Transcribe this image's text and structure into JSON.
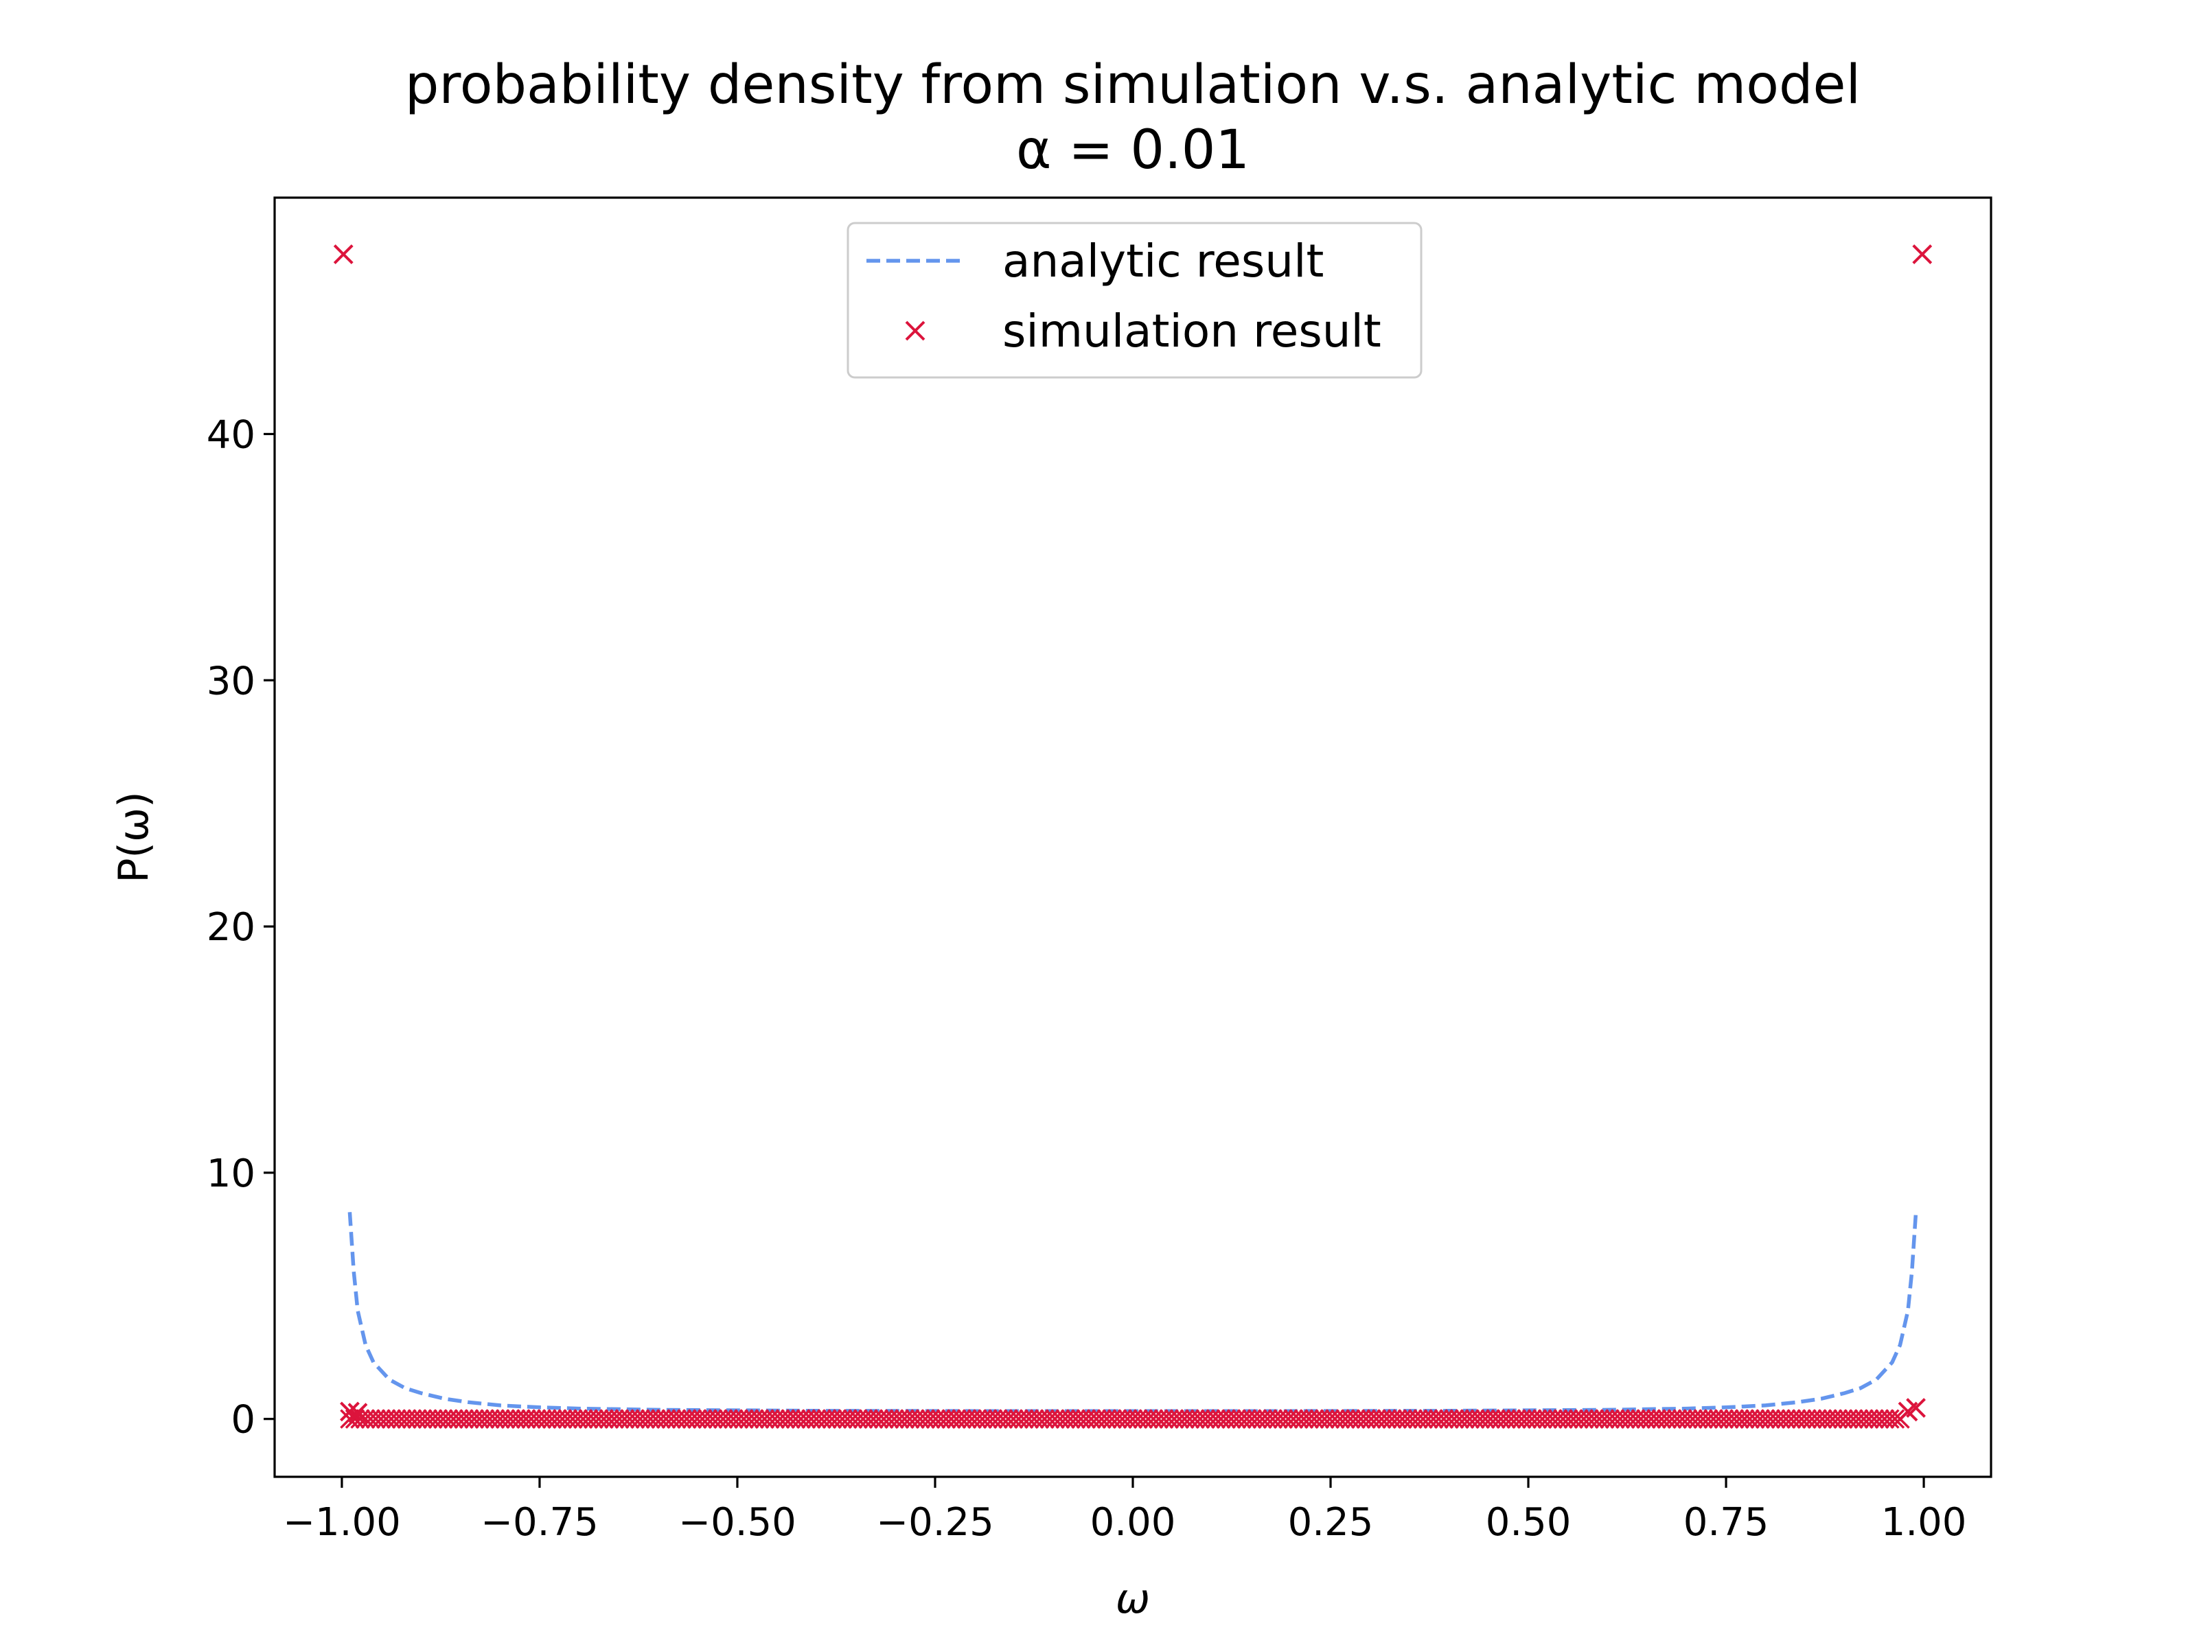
{
  "chart_data": {
    "type": "line+scatter",
    "title_line1": "probability density from simulation v.s. analytic model",
    "title_line2": "α = 0.01",
    "xlabel": "ω",
    "ylabel": "P(ω)",
    "xlim": [
      -1.085,
      1.085
    ],
    "ylim": [
      -2.35,
      49.6
    ],
    "xticks": [
      -1.0,
      -0.75,
      -0.5,
      -0.25,
      0.0,
      0.25,
      0.5,
      0.75,
      1.0
    ],
    "xtick_labels": [
      "−1.00",
      "−0.75",
      "−0.50",
      "−0.25",
      "0.00",
      "0.25",
      "0.50",
      "0.75",
      "1.00"
    ],
    "yticks": [
      0,
      10,
      20,
      30,
      40
    ],
    "ytick_labels": [
      "0",
      "10",
      "20",
      "30",
      "40"
    ],
    "grid": false,
    "legend_position": "upper center",
    "series": [
      {
        "name": "analytic result",
        "kind": "line",
        "linestyle": "dashed",
        "color": "#6495ED",
        "x": [
          -0.99,
          -0.985,
          -0.98,
          -0.97,
          -0.96,
          -0.94,
          -0.92,
          -0.9,
          -0.87,
          -0.84,
          -0.8,
          -0.75,
          -0.7,
          -0.6,
          -0.5,
          -0.4,
          -0.3,
          -0.2,
          -0.1,
          0.0,
          0.1,
          0.2,
          0.3,
          0.4,
          0.5,
          0.6,
          0.7,
          0.75,
          0.8,
          0.84,
          0.87,
          0.9,
          0.92,
          0.94,
          0.96,
          0.97,
          0.98,
          0.985,
          0.99
        ],
        "y": [
          8.4,
          6.0,
          4.4,
          3.0,
          2.3,
          1.6,
          1.25,
          1.05,
          0.82,
          0.68,
          0.55,
          0.47,
          0.42,
          0.37,
          0.35,
          0.33,
          0.325,
          0.32,
          0.318,
          0.318,
          0.318,
          0.32,
          0.325,
          0.33,
          0.35,
          0.37,
          0.42,
          0.47,
          0.55,
          0.68,
          0.82,
          1.05,
          1.25,
          1.6,
          2.3,
          3.0,
          4.4,
          6.0,
          8.4
        ]
      },
      {
        "name": "simulation result",
        "kind": "scatter",
        "marker": "x",
        "color": "#DC143C",
        "outliers": [
          {
            "x": -0.998,
            "y": 47.3
          },
          {
            "x": 0.998,
            "y": 47.3
          }
        ],
        "near_edge_points": [
          {
            "x": -0.99,
            "y": 0.3
          },
          {
            "x": -0.98,
            "y": 0.25
          },
          {
            "x": 0.98,
            "y": 0.3
          },
          {
            "x": 0.99,
            "y": 0.45
          }
        ],
        "dense_band": {
          "x_from": -0.99,
          "x_to": 0.97,
          "y": 0.0,
          "count": 300
        }
      }
    ]
  }
}
